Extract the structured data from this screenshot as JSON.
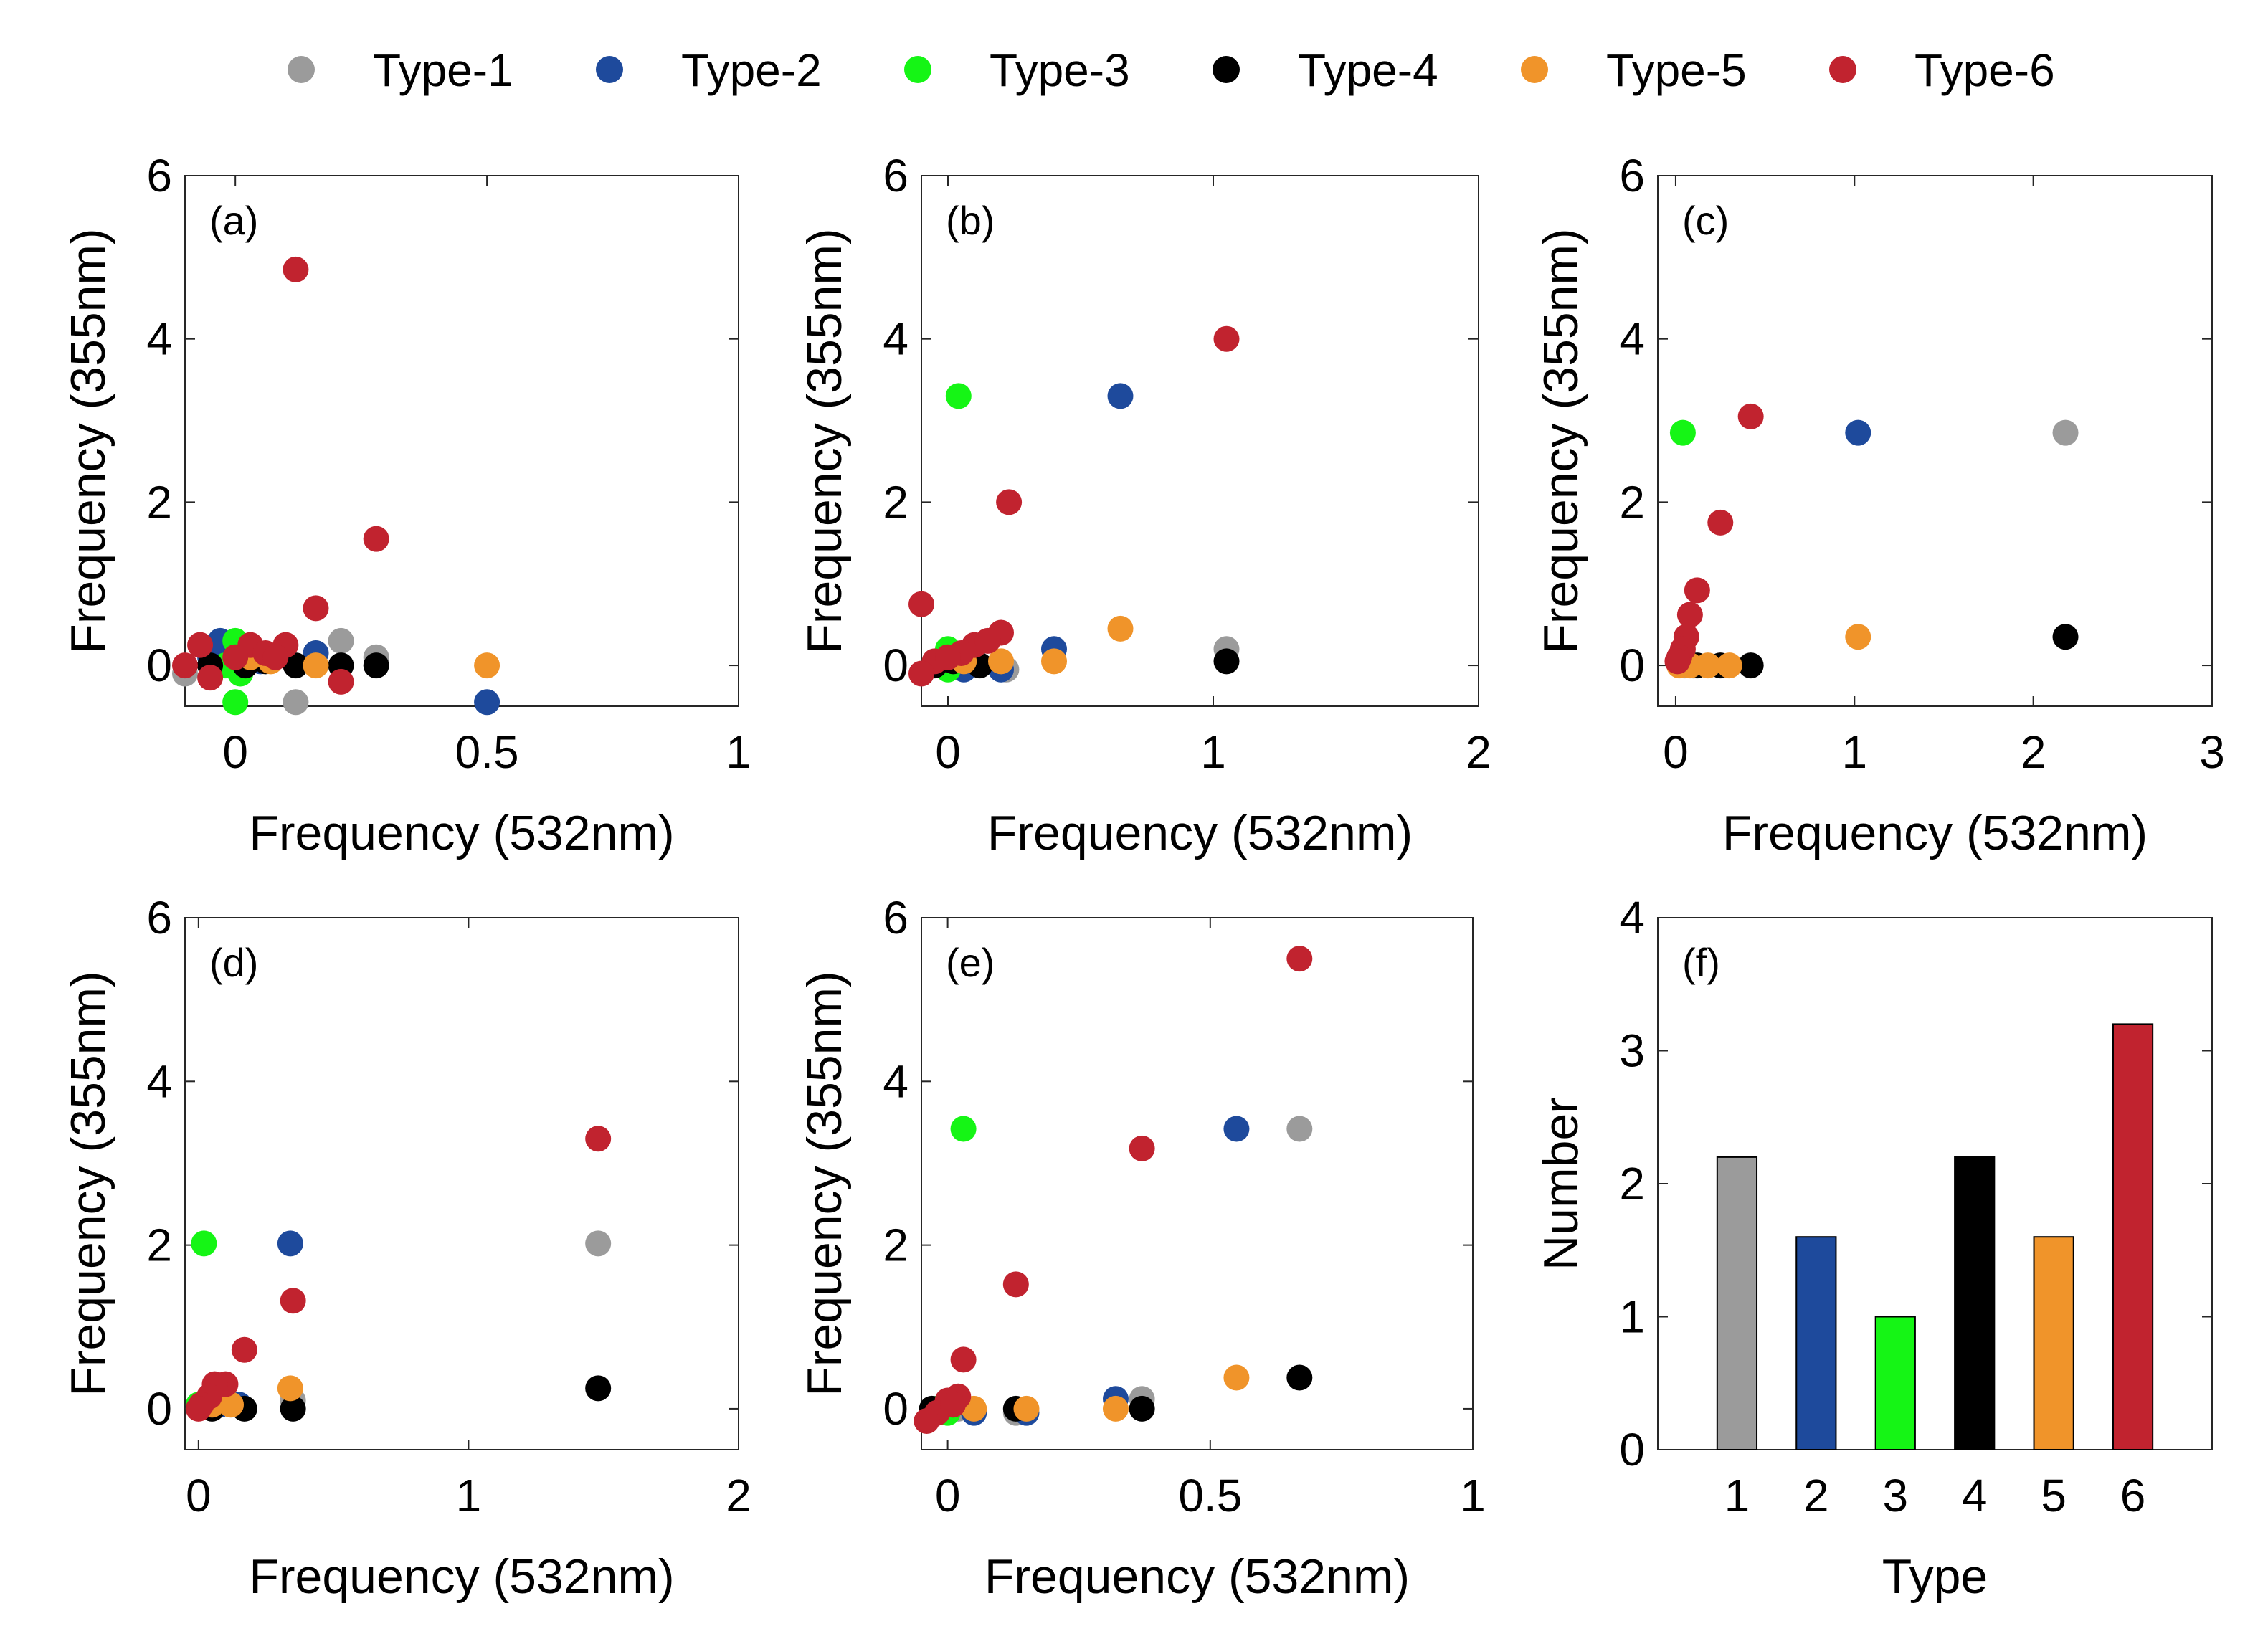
{
  "legend": [
    {
      "label": "Type-1",
      "color": "#9b9b9b"
    },
    {
      "label": "Type-2",
      "color": "#1e4a9c"
    },
    {
      "label": "Type-3",
      "color": "#15f515"
    },
    {
      "label": "Type-4",
      "color": "#000000"
    },
    {
      "label": "Type-5",
      "color": "#f0942a"
    },
    {
      "label": "Type-6",
      "color": "#c1232f"
    }
  ],
  "chart_data": [
    {
      "type": "scatter",
      "panel_label": "(a)",
      "xlabel": "Frequency  (532nm)",
      "ylabel": "Frequency  (355nm)",
      "xlim": [
        -0.1,
        1
      ],
      "ylim": [
        -0.5,
        6
      ],
      "xticks": [
        0,
        0.5,
        1
      ],
      "xtick_labels": [
        "0",
        "0.5",
        "1"
      ],
      "yticks": [
        0,
        2,
        4,
        6
      ],
      "ytick_labels": [
        "0",
        "2",
        "4",
        "6"
      ],
      "series": [
        {
          "name": "Type-1",
          "points": [
            [
              -0.1,
              -0.1
            ],
            [
              0.12,
              -0.45
            ],
            [
              0.21,
              0.3
            ],
            [
              0.28,
              0.1
            ],
            [
              0.03,
              0.05
            ],
            [
              0.16,
              0.15
            ]
          ]
        },
        {
          "name": "Type-2",
          "points": [
            [
              -0.03,
              0.3
            ],
            [
              0.16,
              0.15
            ],
            [
              0.5,
              -0.45
            ],
            [
              0.05,
              0.05
            ],
            [
              -0.05,
              0.1
            ]
          ]
        },
        {
          "name": "Type-3",
          "points": [
            [
              0.0,
              -0.45
            ],
            [
              0.0,
              0.3
            ],
            [
              0.02,
              0.1
            ],
            [
              -0.02,
              0.0
            ],
            [
              0.01,
              -0.1
            ]
          ]
        },
        {
          "name": "Type-4",
          "points": [
            [
              -0.05,
              0.0
            ],
            [
              0.02,
              0.0
            ],
            [
              0.12,
              0.0
            ],
            [
              0.21,
              0.0
            ],
            [
              0.28,
              0.0
            ],
            [
              0.06,
              0.05
            ]
          ]
        },
        {
          "name": "Type-5",
          "points": [
            [
              0.16,
              0.0
            ],
            [
              0.5,
              0.0
            ],
            [
              0.07,
              0.05
            ],
            [
              0.03,
              0.1
            ]
          ]
        },
        {
          "name": "Type-6",
          "points": [
            [
              0.12,
              4.85
            ],
            [
              0.28,
              1.55
            ],
            [
              0.16,
              0.7
            ],
            [
              0.21,
              -0.2
            ],
            [
              0.1,
              0.25
            ],
            [
              -0.07,
              0.25
            ],
            [
              0.03,
              0.25
            ],
            [
              -0.1,
              0.0
            ],
            [
              -0.05,
              -0.15
            ],
            [
              0.0,
              0.1
            ],
            [
              0.06,
              0.15
            ],
            [
              0.08,
              0.1
            ]
          ]
        }
      ]
    },
    {
      "type": "scatter",
      "panel_label": "(b)",
      "xlabel": "Frequency  (532nm)",
      "ylabel": "Frequency  (355nm)",
      "xlim": [
        -0.1,
        2
      ],
      "ylim": [
        -0.5,
        6
      ],
      "xticks": [
        0,
        1,
        2
      ],
      "xtick_labels": [
        "0",
        "1",
        "2"
      ],
      "yticks": [
        0,
        2,
        4,
        6
      ],
      "ytick_labels": [
        "0",
        "2",
        "4",
        "6"
      ],
      "series": [
        {
          "name": "Type-1",
          "points": [
            [
              1.05,
              0.2
            ],
            [
              0.22,
              -0.05
            ],
            [
              0.05,
              0.05
            ]
          ]
        },
        {
          "name": "Type-2",
          "points": [
            [
              0.65,
              3.3
            ],
            [
              0.4,
              0.2
            ],
            [
              0.2,
              -0.05
            ],
            [
              0.06,
              -0.05
            ]
          ]
        },
        {
          "name": "Type-3",
          "points": [
            [
              0.04,
              3.3
            ],
            [
              0.0,
              0.2
            ],
            [
              0.0,
              -0.05
            ]
          ]
        },
        {
          "name": "Type-4",
          "points": [
            [
              1.05,
              0.05
            ],
            [
              0.12,
              0.0
            ],
            [
              -0.05,
              0.0
            ],
            [
              0.02,
              0.05
            ]
          ]
        },
        {
          "name": "Type-5",
          "points": [
            [
              0.65,
              0.45
            ],
            [
              0.4,
              0.05
            ],
            [
              0.2,
              0.05
            ],
            [
              0.06,
              0.05
            ]
          ]
        },
        {
          "name": "Type-6",
          "points": [
            [
              1.05,
              4.0
            ],
            [
              0.23,
              2.0
            ],
            [
              0.2,
              0.4
            ],
            [
              -0.1,
              0.75
            ],
            [
              0.1,
              0.25
            ],
            [
              0.05,
              0.15
            ],
            [
              -0.05,
              0.05
            ],
            [
              -0.1,
              -0.1
            ],
            [
              0.0,
              0.1
            ],
            [
              0.15,
              0.3
            ]
          ]
        }
      ]
    },
    {
      "type": "scatter",
      "panel_label": "(c)",
      "xlabel": "Frequency  (532nm)",
      "ylabel": "Frequency  (355nm)",
      "xlim": [
        -0.1,
        3
      ],
      "ylim": [
        -0.5,
        6
      ],
      "xticks": [
        0,
        1,
        2,
        3
      ],
      "xtick_labels": [
        "0",
        "1",
        "2",
        "3"
      ],
      "yticks": [
        0,
        2,
        4,
        6
      ],
      "ytick_labels": [
        "0",
        "2",
        "4",
        "6"
      ],
      "series": [
        {
          "name": "Type-1",
          "points": [
            [
              2.18,
              2.85
            ],
            [
              0.05,
              0.0
            ]
          ]
        },
        {
          "name": "Type-2",
          "points": [
            [
              1.02,
              2.85
            ],
            [
              0.1,
              0.0
            ]
          ]
        },
        {
          "name": "Type-3",
          "points": [
            [
              0.04,
              2.85
            ],
            [
              0.02,
              0.05
            ]
          ]
        },
        {
          "name": "Type-4",
          "points": [
            [
              2.18,
              0.35
            ],
            [
              0.42,
              0.0
            ],
            [
              0.25,
              0.0
            ],
            [
              0.12,
              0.0
            ]
          ]
        },
        {
          "name": "Type-5",
          "points": [
            [
              1.02,
              0.35
            ],
            [
              0.3,
              0.0
            ],
            [
              0.18,
              0.0
            ],
            [
              0.08,
              0.0
            ],
            [
              0.02,
              0.0
            ]
          ]
        },
        {
          "name": "Type-6",
          "points": [
            [
              0.42,
              3.05
            ],
            [
              0.25,
              1.75
            ],
            [
              0.12,
              0.92
            ],
            [
              0.08,
              0.62
            ],
            [
              0.06,
              0.35
            ],
            [
              0.04,
              0.2
            ],
            [
              0.02,
              0.1
            ],
            [
              0.01,
              0.05
            ]
          ]
        }
      ]
    },
    {
      "type": "scatter",
      "panel_label": "(d)",
      "xlabel": "Frequency  (532nm)",
      "ylabel": "Frequency  (355nm)",
      "xlim": [
        -0.05,
        2
      ],
      "ylim": [
        -0.5,
        6
      ],
      "xticks": [
        0,
        1,
        2
      ],
      "xtick_labels": [
        "0",
        "1",
        "2"
      ],
      "yticks": [
        0,
        2,
        4,
        6
      ],
      "ytick_labels": [
        "0",
        "2",
        "4",
        "6"
      ],
      "series": [
        {
          "name": "Type-1",
          "points": [
            [
              1.48,
              2.02
            ],
            [
              0.35,
              0.1
            ],
            [
              0.05,
              0.05
            ]
          ]
        },
        {
          "name": "Type-2",
          "points": [
            [
              0.34,
              2.02
            ],
            [
              0.15,
              0.05
            ],
            [
              0.08,
              0.05
            ]
          ]
        },
        {
          "name": "Type-3",
          "points": [
            [
              0.02,
              2.02
            ],
            [
              0.0,
              0.05
            ]
          ]
        },
        {
          "name": "Type-4",
          "points": [
            [
              1.48,
              0.25
            ],
            [
              0.35,
              0.0
            ],
            [
              0.17,
              0.0
            ],
            [
              0.05,
              0.0
            ]
          ]
        },
        {
          "name": "Type-5",
          "points": [
            [
              0.34,
              0.25
            ],
            [
              0.12,
              0.05
            ],
            [
              0.05,
              0.05
            ]
          ]
        },
        {
          "name": "Type-6",
          "points": [
            [
              1.48,
              3.3
            ],
            [
              0.35,
              1.32
            ],
            [
              0.17,
              0.72
            ],
            [
              0.1,
              0.3
            ],
            [
              0.06,
              0.3
            ],
            [
              0.04,
              0.15
            ],
            [
              0.01,
              0.05
            ],
            [
              0.0,
              0.0
            ]
          ]
        }
      ]
    },
    {
      "type": "scatter",
      "panel_label": "(e)",
      "xlabel": "Frequency  (532nm)",
      "ylabel": "Frequency  (355nm)",
      "xlim": [
        -0.05,
        1
      ],
      "ylim": [
        -0.5,
        6
      ],
      "xticks": [
        0,
        0.5,
        1
      ],
      "xtick_labels": [
        "0",
        "0.5",
        "1"
      ],
      "yticks": [
        0,
        2,
        4,
        6
      ],
      "ytick_labels": [
        "0",
        "2",
        "4",
        "6"
      ],
      "series": [
        {
          "name": "Type-1",
          "points": [
            [
              0.67,
              3.42
            ],
            [
              0.37,
              0.12
            ],
            [
              0.13,
              -0.05
            ],
            [
              0.02,
              0.0
            ]
          ]
        },
        {
          "name": "Type-2",
          "points": [
            [
              0.55,
              3.42
            ],
            [
              0.32,
              0.12
            ],
            [
              0.15,
              -0.05
            ],
            [
              0.05,
              -0.05
            ]
          ]
        },
        {
          "name": "Type-3",
          "points": [
            [
              0.03,
              3.42
            ],
            [
              0.0,
              -0.05
            ],
            [
              -0.02,
              0.0
            ]
          ]
        },
        {
          "name": "Type-4",
          "points": [
            [
              0.67,
              0.38
            ],
            [
              0.37,
              0.0
            ],
            [
              0.13,
              0.0
            ],
            [
              -0.03,
              0.0
            ]
          ]
        },
        {
          "name": "Type-5",
          "points": [
            [
              0.55,
              0.38
            ],
            [
              0.32,
              0.0
            ],
            [
              0.15,
              0.0
            ],
            [
              0.05,
              0.0
            ]
          ]
        },
        {
          "name": "Type-6",
          "points": [
            [
              0.67,
              5.5
            ],
            [
              0.37,
              3.18
            ],
            [
              0.13,
              1.52
            ],
            [
              0.03,
              0.6
            ],
            [
              0.02,
              0.15
            ],
            [
              0.0,
              0.1
            ],
            [
              -0.02,
              -0.05
            ],
            [
              -0.04,
              -0.15
            ],
            [
              0.01,
              0.05
            ]
          ]
        }
      ]
    },
    {
      "type": "bar",
      "panel_label": "(f)",
      "xlabel": "Type",
      "ylabel": "Number",
      "categories": [
        "1",
        "2",
        "3",
        "4",
        "5",
        "6"
      ],
      "values": [
        2.2,
        1.6,
        1.0,
        2.2,
        1.6,
        3.2
      ],
      "ylim": [
        0,
        4
      ],
      "yticks": [
        0,
        1,
        2,
        3,
        4
      ],
      "ytick_labels": [
        "0",
        "1",
        "2",
        "3",
        "4"
      ]
    }
  ]
}
